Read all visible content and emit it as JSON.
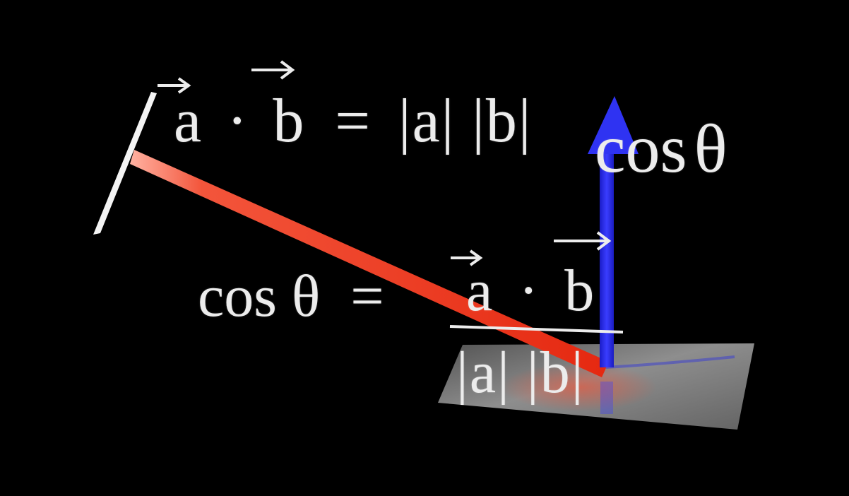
{
  "formula_top": {
    "vec_a": "a",
    "dot": "·",
    "vec_b": "b",
    "equals": "=",
    "rest": "|a| |b|",
    "cos": "cos",
    "theta": "θ"
  },
  "formula_bottom": {
    "lhs": "cos θ",
    "equals": "=",
    "num_vec_a": "a",
    "num_dot": "·",
    "num_vec_b": "b",
    "denominator": "|a| |b|"
  },
  "colors": {
    "background": "#000000",
    "red_vector": "#e8341c",
    "blue_vector": "#2b2ee6",
    "plane": "#8a8a8a",
    "text": "#ececec"
  }
}
